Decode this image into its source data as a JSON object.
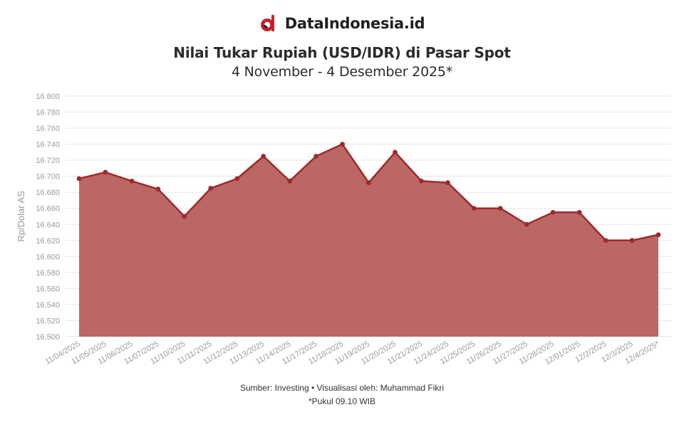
{
  "brand": {
    "name": "DataIndonesia.id",
    "logo_icon": "datainddonesia-logo-icon",
    "logo_color": "#c8202b"
  },
  "header": {
    "title": "Nilai Tukar Rupiah (USD/IDR) di Pasar Spot",
    "subtitle": "4 November - 4 Desember 2025*"
  },
  "footer": {
    "source": "Sumber: Investing • Visualisasi oleh: Muhammad Fikri",
    "note": "*Pukul 09.10 WIB"
  },
  "colors": {
    "line": "#9e2a2b",
    "fill": "#b55a58",
    "grid": "#e6e6e6",
    "point": "#9e2a2b"
  },
  "chart_data": {
    "type": "area",
    "ylabel": "Rp/Dolar AS",
    "ylim": [
      16500,
      16800
    ],
    "ytick_step": 20,
    "ytick_labels": [
      "16.500",
      "16.520",
      "16.540",
      "16.560",
      "16.580",
      "16.600",
      "16.620",
      "16.640",
      "16.660",
      "16.680",
      "16.700",
      "16.720",
      "16.740",
      "16.760",
      "16.780",
      "16.800"
    ],
    "grid": true,
    "legend": "none",
    "categories": [
      "11/04/2025",
      "11/05/2025",
      "11/06/2025",
      "11/07/2025",
      "11/10/2025",
      "11/11/2025",
      "11/12/2025",
      "11/13/2025",
      "11/14/2025",
      "11/17/2025",
      "11/18/2025",
      "11/19/2025",
      "11/20/2025",
      "11/21/2025",
      "11/24/2025",
      "11/25/2025",
      "11/26/2025",
      "11/27/2025",
      "11/28/2025",
      "12/01/2025",
      "12/2/2025",
      "12/3/2025",
      "12/4/2025*"
    ],
    "series": [
      {
        "values": [
          16697,
          16705,
          16694,
          16684,
          16650,
          16685,
          16697,
          16725,
          16694,
          16725,
          16740,
          16692,
          16730,
          16694,
          16692,
          16660,
          16660,
          16640,
          16655,
          16655,
          16620,
          16620,
          16627
        ]
      }
    ]
  }
}
